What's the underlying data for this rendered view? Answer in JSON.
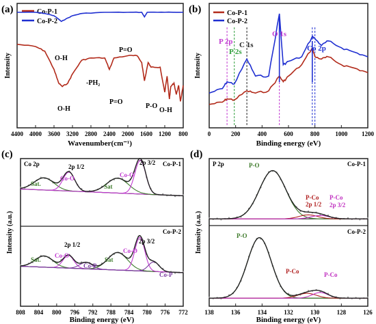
{
  "colors": {
    "red": "#b22a1a",
    "blue": "#1f2fd1",
    "gray": "#9a9a9a",
    "dark": "#222222",
    "green": "#2e9e3a",
    "magenta": "#c03ad0",
    "olive": "#3d7a2a",
    "purple": "#7a3aa0",
    "dred": "#b02020",
    "ppink": "#c030c0"
  },
  "panels": {
    "a": {
      "label": "(a)",
      "legend": [
        "Co-P-1",
        "Co-P-2"
      ],
      "xlabel": "Wavenumber(cm⁻¹)",
      "ylabel": "Intensity",
      "ticks": [
        "4400",
        "4000",
        "3600",
        "3200",
        "2800",
        "2400",
        "2000",
        "1600",
        "1200",
        "800"
      ],
      "ann": [
        "O-H",
        "P=O",
        "O-H",
        "-PH₂",
        "P=O",
        "P-O",
        "O-H"
      ]
    },
    "b": {
      "label": "(b)",
      "legend": [
        "Co-P-1",
        "Co-P-2"
      ],
      "xlabel": "Binding energy (eV)",
      "ylabel": "Intensity",
      "ticks": [
        "0",
        "200",
        "400",
        "600",
        "800",
        "1000",
        "1200"
      ],
      "ann": [
        "O 1s",
        "P 2p",
        "P 2s",
        "C 1s",
        "Co 2p"
      ]
    },
    "c": {
      "label": "(c)",
      "xlabel": "Binding energy (eV)",
      "ylabel": "Intensity (a.u.)",
      "ticks": [
        "808",
        "804",
        "800",
        "796",
        "792",
        "788",
        "784",
        "780",
        "776",
        "772"
      ],
      "top": {
        "title": "Co 2p",
        "sample": "Co-P-1",
        "ann": [
          "Sat.",
          "Co-O",
          "2p 1/2",
          "Sat",
          "Co-O",
          "2p 3/2"
        ]
      },
      "bot": {
        "sample": "Co-P-2",
        "ann": [
          "Sat.",
          "Co-O",
          "2p 1/2",
          "Co-P",
          "Sat",
          "Co-O",
          "2p 3/2",
          "Co-P"
        ]
      }
    },
    "d": {
      "label": "(d)",
      "xlabel": "Binding energy (eV)",
      "ylabel": "Intensity (a.u.)",
      "ticks": [
        "138",
        "136",
        "134",
        "132",
        "130",
        "128",
        "126"
      ],
      "top": {
        "title": "P 2p",
        "sample": "Co-P-1",
        "ann": [
          "P-O",
          "P-Co",
          "2p 1/2",
          "P-Co",
          "2p 3/2"
        ]
      },
      "bot": {
        "sample": "Co-P-2",
        "ann": [
          "P-O",
          "P-Co",
          "P-Co"
        ]
      }
    }
  },
  "chart_data": [
    {
      "type": "line",
      "panel": "a",
      "title": "",
      "xlabel": "Wavenumber(cm⁻¹)",
      "ylabel": "Intensity",
      "xlim": [
        4400,
        800
      ],
      "series": [
        {
          "name": "Co-P-1",
          "x": [
            4400,
            4000,
            3800,
            3600,
            3500,
            3420,
            3300,
            3200,
            3000,
            2800,
            2500,
            2400,
            2300,
            2000,
            1800,
            1700,
            1640,
            1560,
            1500,
            1300,
            1200,
            1150,
            1100,
            1070,
            1000,
            950,
            900,
            860,
            800
          ],
          "y": [
            0.72,
            0.7,
            0.66,
            0.5,
            0.38,
            0.35,
            0.38,
            0.46,
            0.58,
            0.6,
            0.6,
            0.5,
            0.6,
            0.62,
            0.62,
            0.56,
            0.4,
            0.56,
            0.52,
            0.52,
            0.3,
            0.44,
            0.24,
            0.35,
            0.38,
            0.28,
            0.36,
            0.22,
            0.36
          ]
        },
        {
          "name": "Co-P-2",
          "x": [
            4400,
            4000,
            3800,
            3600,
            3500,
            3440,
            3350,
            3200,
            3000,
            2500,
            2000,
            1700,
            1640,
            1580,
            1200,
            800
          ],
          "y": [
            1.0,
            1.0,
            0.99,
            0.97,
            0.94,
            0.92,
            0.94,
            0.97,
            0.99,
            1.0,
            1.0,
            1.0,
            0.96,
            1.0,
            1.0,
            1.0
          ]
        }
      ]
    },
    {
      "type": "line",
      "panel": "b",
      "title": "",
      "xlabel": "Binding energy (eV)",
      "ylabel": "Intensity",
      "xlim": [
        0,
        1200
      ],
      "series": [
        {
          "name": "Co-P-1",
          "x": [
            0,
            100,
            135,
            190,
            285,
            350,
            450,
            531,
            560,
            600,
            700,
            780,
            800,
            850,
            900,
            1000,
            1100,
            1200
          ],
          "y": [
            0.2,
            0.22,
            0.25,
            0.24,
            0.32,
            0.3,
            0.32,
            0.45,
            0.4,
            0.45,
            0.55,
            0.7,
            0.62,
            0.6,
            0.62,
            0.55,
            0.52,
            0.48
          ]
        },
        {
          "name": "Co-P-2",
          "x": [
            0,
            100,
            135,
            190,
            285,
            350,
            450,
            531,
            560,
            600,
            700,
            780,
            800,
            850,
            900,
            1000,
            1100,
            1200
          ],
          "y": [
            0.3,
            0.34,
            0.4,
            0.38,
            0.6,
            0.45,
            0.45,
            1.0,
            0.55,
            0.58,
            0.62,
            0.8,
            0.78,
            0.72,
            0.76,
            0.7,
            0.66,
            0.62
          ]
        }
      ]
    },
    {
      "type": "line",
      "panel": "c-top",
      "title": "Co 2p",
      "xlabel": "Binding energy (eV)",
      "xlim": [
        808,
        772
      ],
      "peaks": [
        {
          "name": "Sat.",
          "x": 802.8
        },
        {
          "name": "Co-O",
          "x": 797.3
        },
        {
          "name": "Sat",
          "x": 786.5
        },
        {
          "name": "Co-O",
          "x": 781.5
        }
      ]
    },
    {
      "type": "line",
      "panel": "c-bottom",
      "title": "",
      "xlabel": "Binding energy (eV)",
      "xlim": [
        808,
        772
      ],
      "peaks": [
        {
          "name": "Sat.",
          "x": 802.8
        },
        {
          "name": "Co-O",
          "x": 797.4
        },
        {
          "name": "Co-P",
          "x": 793.5
        },
        {
          "name": "Sat",
          "x": 786.5
        },
        {
          "name": "Co-O",
          "x": 781.6
        },
        {
          "name": "Co-P",
          "x": 778.5
        }
      ]
    },
    {
      "type": "line",
      "panel": "d-top",
      "title": "P 2p",
      "xlabel": "Binding energy (eV)",
      "xlim": [
        138,
        126
      ],
      "peaks": [
        {
          "name": "P-O",
          "x": 133.2
        },
        {
          "name": "P-Co 2p 1/2",
          "x": 130.5
        },
        {
          "name": "P-Co 2p 3/2",
          "x": 129.6
        }
      ]
    },
    {
      "type": "line",
      "panel": "d-bottom",
      "title": "",
      "xlabel": "Binding energy (eV)",
      "xlim": [
        138,
        126
      ],
      "peaks": [
        {
          "name": "P-O",
          "x": 134.2
        },
        {
          "name": "P-Co",
          "x": 130.6
        },
        {
          "name": "P-Co",
          "x": 129.6
        }
      ]
    }
  ]
}
